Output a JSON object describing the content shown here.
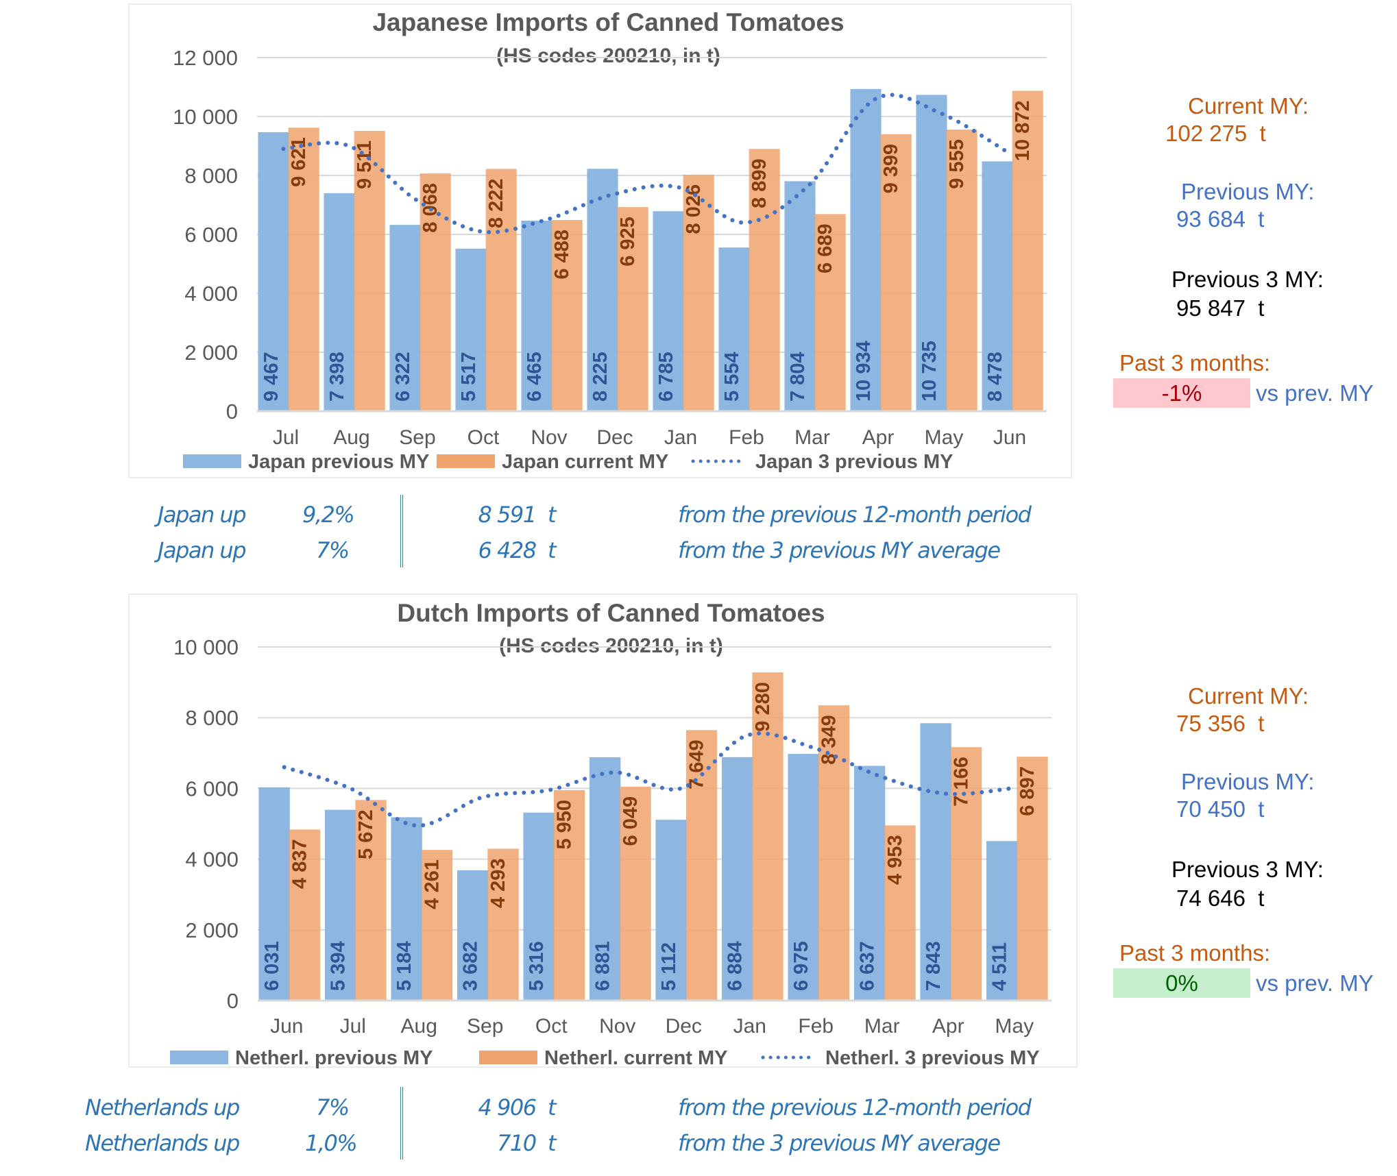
{
  "colors": {
    "previous_bar": "#8db7e0",
    "current_bar": "#f0a36c",
    "overlap_bar": "#d08b64",
    "avg_line": "#4472c4",
    "prev_label": "#2f5597",
    "cur_label": "#843c0c",
    "axis_text": "#595959",
    "grid": "#d9d9d9",
    "orange_text": "#c55a11",
    "blue_text": "#4472c4",
    "summary_text": "#2e75b6",
    "neg_badge_bg": "#ffc7ce",
    "neg_badge_text": "#9c0006",
    "pos_badge_bg": "#c6efce",
    "pos_badge_text": "#006100"
  },
  "chart_data": [
    {
      "type": "bar",
      "title": "Japanese Imports of Canned Tomatoes",
      "subtitle": "(HS codes 200210, in t)",
      "xlabel": "",
      "ylabel": "",
      "ylim": [
        0,
        12000
      ],
      "yticks": [
        0,
        2000,
        4000,
        6000,
        8000,
        10000,
        12000
      ],
      "ytick_labels": [
        "0",
        "2 000",
        "4 000",
        "6 000",
        "8 000",
        "10 000",
        "12 000"
      ],
      "grid": true,
      "legend_position": "bottom",
      "categories": [
        "Jul",
        "Aug",
        "Sep",
        "Oct",
        "Nov",
        "Dec",
        "Jan",
        "Feb",
        "Mar",
        "Apr",
        "May",
        "Jun"
      ],
      "series": [
        {
          "name": "Japan previous MY",
          "kind": "bar",
          "values": [
            9467,
            7398,
            6322,
            5517,
            6465,
            8225,
            6785,
            5554,
            7804,
            10934,
            10735,
            8478
          ],
          "labels": [
            "9 467",
            "7 398",
            "6 322",
            "5 517",
            "6 465",
            "8 225",
            "6 785",
            "5 554",
            "7 804",
            "10 934",
            "10 735",
            "8 478"
          ]
        },
        {
          "name": "Japan current MY",
          "kind": "bar",
          "values": [
            9621,
            9511,
            8068,
            8222,
            6488,
            6925,
            8026,
            8899,
            6689,
            9399,
            9555,
            10872
          ],
          "labels": [
            "9 621",
            "9 511",
            "8 068",
            "8 222",
            "6 488",
            "6 925",
            "8 026",
            "8 899",
            "6 689",
            "9 399",
            "9 555",
            "10 872"
          ]
        },
        {
          "name": "Japan 3 previous MY",
          "kind": "line",
          "style": "dotted",
          "values": [
            8900,
            9000,
            7200,
            6100,
            6500,
            7350,
            7600,
            6400,
            7700,
            10600,
            10100,
            8800
          ]
        }
      ]
    },
    {
      "type": "bar",
      "title": "Dutch Imports of Canned Tomatoes",
      "subtitle": "(HS codes 200210, in t)",
      "xlabel": "",
      "ylabel": "",
      "ylim": [
        0,
        10000
      ],
      "yticks": [
        0,
        2000,
        4000,
        6000,
        8000,
        10000
      ],
      "ytick_labels": [
        "0",
        "2 000",
        "4 000",
        "6 000",
        "8 000",
        "10 000"
      ],
      "grid": true,
      "legend_position": "bottom",
      "categories": [
        "Jun",
        "Jul",
        "Aug",
        "Sep",
        "Oct",
        "Nov",
        "Dec",
        "Jan",
        "Feb",
        "Mar",
        "Apr",
        "May"
      ],
      "series": [
        {
          "name": "Netherl. previous MY",
          "kind": "bar",
          "values": [
            6031,
            5394,
            5184,
            3682,
            5316,
            6881,
            5112,
            6884,
            6975,
            6637,
            7843,
            4511
          ],
          "labels": [
            "6 031",
            "5 394",
            "5 184",
            "3 682",
            "5 316",
            "6 881",
            "5 112",
            "6 884",
            "6 975",
            "6 637",
            "7 843",
            "4 511"
          ]
        },
        {
          "name": "Netherl. current MY",
          "kind": "bar",
          "values": [
            4837,
            5672,
            4261,
            4293,
            5950,
            6049,
            7649,
            9280,
            8349,
            4953,
            7166,
            6897
          ],
          "labels": [
            "4 837",
            "5 672",
            "4 261",
            "4 293",
            "5 950",
            "6 049",
            "7 649",
            "9 280",
            "8 349",
            "4 953",
            "7 166",
            "6 897"
          ]
        },
        {
          "name": "Netherl. 3 previous MY",
          "kind": "line",
          "style": "dotted",
          "values": [
            6600,
            6000,
            4950,
            5750,
            5950,
            6450,
            6000,
            7500,
            7150,
            6350,
            5850,
            6000
          ]
        }
      ]
    }
  ],
  "panels": [
    {
      "current_my_label": "Current MY:",
      "current_my_value": "102 275  t",
      "previous_my_label": "Previous MY:",
      "previous_my_value": "93 684  t",
      "previous_3my_label": "Previous 3 MY:",
      "previous_3my_value": "95 847  t",
      "past3_label": "Past 3 months:",
      "past3_value": "-1%",
      "past3_trend": "negative",
      "vs_label": "vs prev. MY"
    },
    {
      "current_my_label": "Current MY:",
      "current_my_value": "75 356  t",
      "previous_my_label": "Previous MY:",
      "previous_my_value": "70 450  t",
      "previous_3my_label": "Previous 3 MY:",
      "previous_3my_value": "74 646  t",
      "past3_label": "Past 3 months:",
      "past3_value": "0%",
      "past3_trend": "neutral",
      "vs_label": "vs prev. MY"
    }
  ],
  "summaries": [
    {
      "rows": [
        {
          "subject": "Japan up",
          "pct": "9,2%",
          "amount": "8 591  t",
          "desc": "from the previous 12-month period"
        },
        {
          "subject": "Japan up",
          "pct": "7%",
          "amount": "6 428  t",
          "desc": "from the 3 previous MY average"
        }
      ]
    },
    {
      "rows": [
        {
          "subject": "Netherlands up",
          "pct": "7%",
          "amount": "4 906  t",
          "desc": "from the previous 12-month period"
        },
        {
          "subject": "Netherlands up",
          "pct": "1,0%",
          "amount": "710  t",
          "desc": "from the 3 previous MY average"
        }
      ]
    }
  ]
}
